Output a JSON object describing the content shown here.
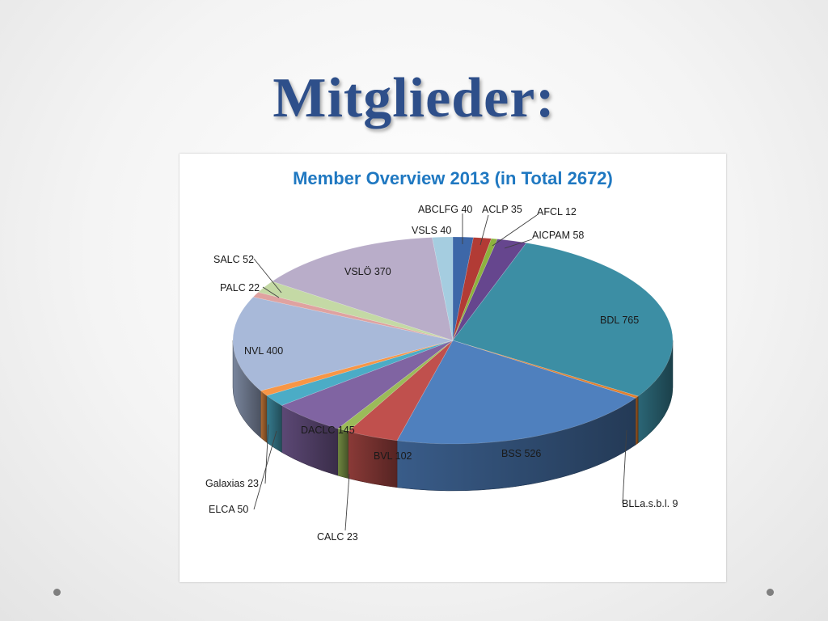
{
  "slide": {
    "title": "Mitglieder:"
  },
  "chart_data": {
    "type": "pie",
    "title": "Member Overview 2013 (in Total 2672)",
    "slices": [
      {
        "name": "ABCLFG",
        "value": 40,
        "label": "ABCLFG 40",
        "color": "#3d67a8"
      },
      {
        "name": "ACLP",
        "value": 35,
        "label": "ACLP 35",
        "color": "#b23b35"
      },
      {
        "name": "AFCL",
        "value": 12,
        "label": "AFCL 12",
        "color": "#8db23e"
      },
      {
        "name": "AICPAM",
        "value": 58,
        "label": "AICPAM 58",
        "color": "#66468e"
      },
      {
        "name": "BDL",
        "value": 765,
        "label": "BDL 765",
        "color": "#3c8ea4"
      },
      {
        "name": "BLLa.s.b.l.",
        "value": 9,
        "label": "BLLa.s.b.l. 9",
        "color": "#e27f2d"
      },
      {
        "name": "BSS",
        "value": 526,
        "label": "BSS 526",
        "color": "#4f80be"
      },
      {
        "name": "BVL",
        "value": 102,
        "label": "BVL 102",
        "color": "#c0504d"
      },
      {
        "name": "CALC",
        "value": 23,
        "label": "CALC  23",
        "color": "#9bbb59"
      },
      {
        "name": "DACLC",
        "value": 145,
        "label": "DACLC  145",
        "color": "#8064a2"
      },
      {
        "name": "ELCA",
        "value": 50,
        "label": "ELCA  50",
        "color": "#4bacc6"
      },
      {
        "name": "Galaxias",
        "value": 23,
        "label": "Galaxias 23",
        "color": "#f79646"
      },
      {
        "name": "NVL",
        "value": 400,
        "label": "NVL 400",
        "color": "#a8b9d9"
      },
      {
        "name": "PALC",
        "value": 22,
        "label": "PALC 22",
        "color": "#dfa2a0"
      },
      {
        "name": "SALC",
        "value": 52,
        "label": "SALC  52",
        "color": "#c4d9a5"
      },
      {
        "name": "VSLÖ",
        "value": 370,
        "label": "VSLÖ 370",
        "color": "#b9adc9"
      },
      {
        "name": "VSLS",
        "value": 40,
        "label": "VSLS 40",
        "color": "#a5cde0"
      }
    ]
  }
}
